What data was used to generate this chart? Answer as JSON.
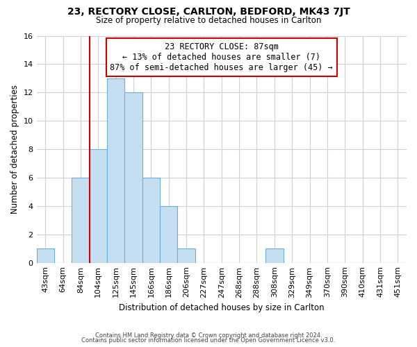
{
  "title": "23, RECTORY CLOSE, CARLTON, BEDFORD, MK43 7JT",
  "subtitle": "Size of property relative to detached houses in Carlton",
  "xlabel": "Distribution of detached houses by size in Carlton",
  "ylabel": "Number of detached properties",
  "bar_labels": [
    "43sqm",
    "64sqm",
    "84sqm",
    "104sqm",
    "125sqm",
    "145sqm",
    "166sqm",
    "186sqm",
    "206sqm",
    "227sqm",
    "247sqm",
    "268sqm",
    "288sqm",
    "308sqm",
    "329sqm",
    "349sqm",
    "370sqm",
    "390sqm",
    "410sqm",
    "431sqm",
    "451sqm"
  ],
  "bar_values": [
    1,
    0,
    6,
    8,
    13,
    12,
    6,
    4,
    1,
    0,
    0,
    0,
    0,
    1,
    0,
    0,
    0,
    0,
    0,
    0,
    0
  ],
  "bar_color": "#c5dff0",
  "bar_edge_color": "#6aafd6",
  "highlight_bar_index": 2,
  "highlight_line_color": "#cc0000",
  "annotation_title": "23 RECTORY CLOSE: 87sqm",
  "annotation_line1": "← 13% of detached houses are smaller (7)",
  "annotation_line2": "87% of semi-detached houses are larger (45) →",
  "annotation_box_color": "#ffffff",
  "annotation_box_edge_color": "#cc0000",
  "ylim": [
    0,
    16
  ],
  "yticks": [
    0,
    2,
    4,
    6,
    8,
    10,
    12,
    14,
    16
  ],
  "footer_line1": "Contains HM Land Registry data © Crown copyright and database right 2024.",
  "footer_line2": "Contains public sector information licensed under the Open Government Licence v3.0.",
  "background_color": "#ffffff",
  "grid_color": "#d0d0d0"
}
